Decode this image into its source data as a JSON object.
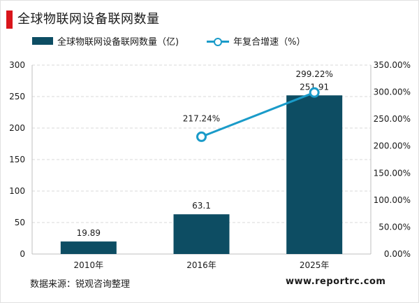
{
  "title": "全球物联网设备联网数量",
  "colors": {
    "accent": "#d9151b",
    "bar": "#0d4d63",
    "line": "#1a9bc9"
  },
  "legend": {
    "bar_label": "全球物联网设备联网数量（亿)",
    "line_label": "年复合增速（%）"
  },
  "chart_data": {
    "type": "bar",
    "categories": [
      "2010年",
      "2016年",
      "2025年"
    ],
    "series": [
      {
        "name": "全球物联网设备联网数量（亿)",
        "type": "bar",
        "axis": "left",
        "values": [
          19.89,
          63.1,
          251.91
        ],
        "labels": [
          "19.89",
          "63.1",
          "251.91"
        ]
      },
      {
        "name": "年复合增速（%）",
        "type": "line",
        "axis": "right",
        "values": [
          null,
          217.24,
          299.22
        ],
        "labels": [
          null,
          "217.24%",
          "299.22%"
        ]
      }
    ],
    "ylim_left": [
      0,
      300
    ],
    "yticks_left": [
      "0",
      "50",
      "100",
      "150",
      "200",
      "250",
      "300"
    ],
    "ylim_right": [
      0,
      350
    ],
    "yticks_right": [
      "0.00%",
      "50.00%",
      "100.00%",
      "150.00%",
      "200.00%",
      "250.00%",
      "300.00%",
      "350.00%"
    ],
    "grid": true,
    "legend_position": "top"
  },
  "footer": {
    "source": "数据来源：锐观咨询整理",
    "website": "www.reportrc.com"
  }
}
